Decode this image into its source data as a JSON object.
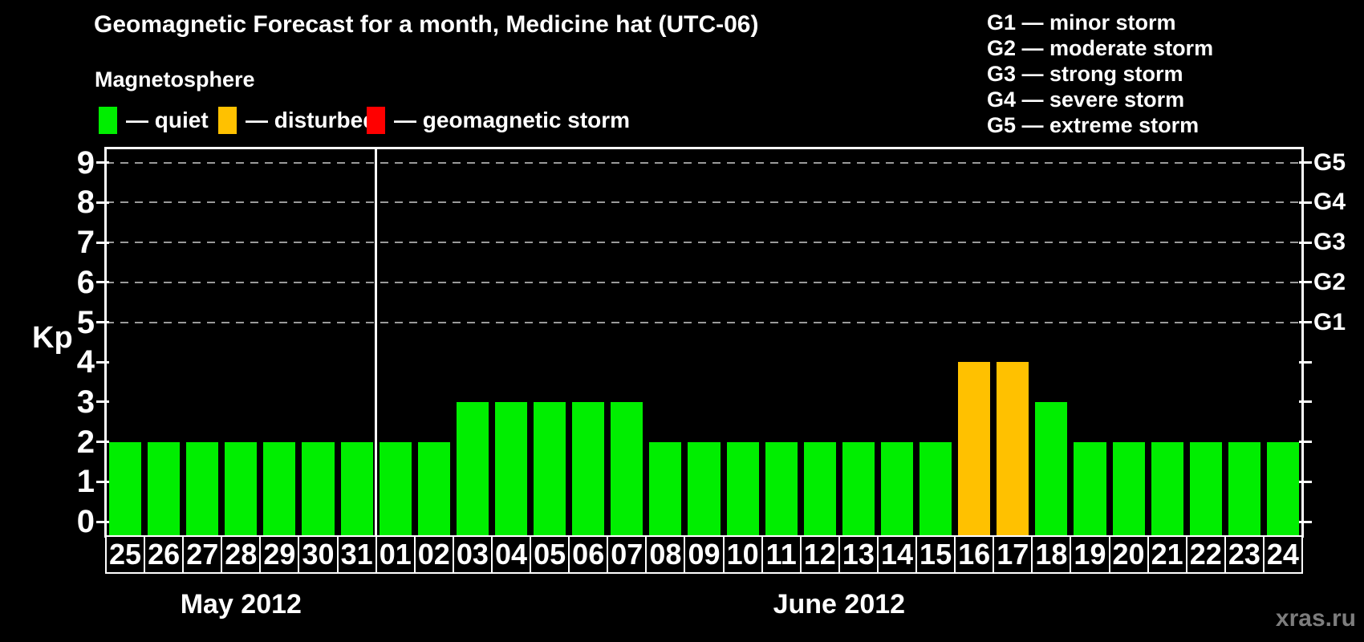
{
  "title": "Geomagnetic Forecast for a month, Medicine hat (UTC-06)",
  "magnetosphere": {
    "heading": "Magnetosphere",
    "items": [
      {
        "name": "quiet",
        "label": "— quiet",
        "color": "#00ee00"
      },
      {
        "name": "disturbed",
        "label": "— disturbed",
        "color": "#ffc100"
      },
      {
        "name": "storm",
        "label": "— geomagnetic storm",
        "color": "#ff0000"
      }
    ]
  },
  "storm_scale": {
    "items": [
      "G1 — minor storm",
      "G2 — moderate storm",
      "G3 — strong storm",
      "G4 — severe storm",
      "G5 — extreme storm"
    ]
  },
  "y_axis": {
    "label": "Kp",
    "ticks": [
      9,
      8,
      7,
      6,
      5,
      4,
      3,
      2,
      1,
      0
    ]
  },
  "right_axis": {
    "labels": [
      {
        "text": "G5",
        "kp": 9
      },
      {
        "text": "G4",
        "kp": 8
      },
      {
        "text": "G3",
        "kp": 7
      },
      {
        "text": "G2",
        "kp": 6
      },
      {
        "text": "G1",
        "kp": 5
      }
    ]
  },
  "months": [
    {
      "label": "May 2012",
      "days": [
        "25",
        "26",
        "27",
        "28",
        "29",
        "30",
        "31"
      ]
    },
    {
      "label": "June 2012",
      "days": [
        "01",
        "02",
        "03",
        "04",
        "05",
        "06",
        "07",
        "08",
        "09",
        "10",
        "11",
        "12",
        "13",
        "14",
        "15",
        "16",
        "17",
        "18",
        "19",
        "20",
        "21",
        "22",
        "23",
        "24"
      ]
    }
  ],
  "colors": {
    "quiet": "#00ee00",
    "disturbed": "#ffc100",
    "storm": "#ff0000"
  },
  "watermark": "xras.ru",
  "chart_data": {
    "type": "bar",
    "title": "Geomagnetic Forecast for a month, Medicine hat (UTC-06)",
    "xlabel": "",
    "ylabel": "Kp",
    "ylim": [
      0,
      9
    ],
    "grid": "dashed horizontal at Kp 5-9 (G1-G5 levels)",
    "gridlines_at_kp": [
      9,
      8,
      7,
      6,
      5
    ],
    "legend_position": "top",
    "categories": [
      "May 25",
      "May 26",
      "May 27",
      "May 28",
      "May 29",
      "May 30",
      "May 31",
      "Jun 01",
      "Jun 02",
      "Jun 03",
      "Jun 04",
      "Jun 05",
      "Jun 06",
      "Jun 07",
      "Jun 08",
      "Jun 09",
      "Jun 10",
      "Jun 11",
      "Jun 12",
      "Jun 13",
      "Jun 14",
      "Jun 15",
      "Jun 16",
      "Jun 17",
      "Jun 18",
      "Jun 19",
      "Jun 20",
      "Jun 21",
      "Jun 22",
      "Jun 23",
      "Jun 24"
    ],
    "values": [
      2,
      2,
      2,
      2,
      2,
      2,
      2,
      2,
      2,
      3,
      3,
      3,
      3,
      3,
      2,
      2,
      2,
      2,
      2,
      2,
      2,
      2,
      4,
      4,
      3,
      2,
      2,
      2,
      2,
      2,
      2
    ],
    "status": [
      "quiet",
      "quiet",
      "quiet",
      "quiet",
      "quiet",
      "quiet",
      "quiet",
      "quiet",
      "quiet",
      "quiet",
      "quiet",
      "quiet",
      "quiet",
      "quiet",
      "quiet",
      "quiet",
      "quiet",
      "quiet",
      "quiet",
      "quiet",
      "quiet",
      "quiet",
      "disturbed",
      "disturbed",
      "quiet",
      "quiet",
      "quiet",
      "quiet",
      "quiet",
      "quiet",
      "quiet"
    ]
  }
}
